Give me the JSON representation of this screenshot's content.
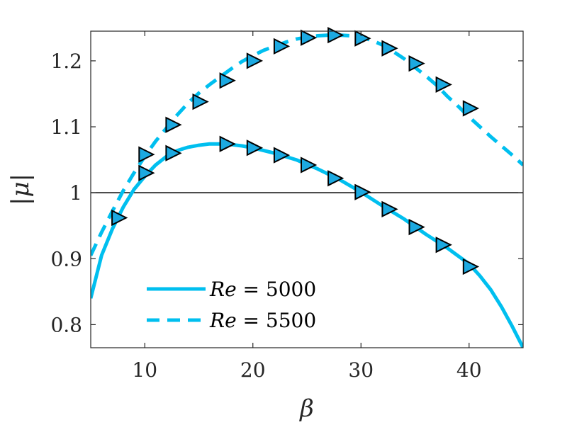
{
  "chart_data": {
    "type": "line",
    "xlabel": "β",
    "ylabel": "|μ|",
    "xlim": [
      5,
      45
    ],
    "ylim": [
      0.765,
      1.245
    ],
    "xticks": [
      10,
      20,
      30,
      40
    ],
    "yticks": [
      0.8,
      0.9,
      1,
      1.1,
      1.2
    ],
    "xtick_labels": [
      "10",
      "20",
      "30",
      "40"
    ],
    "ytick_labels": [
      "0.8",
      "0.9",
      "1",
      "1.1",
      "1.2"
    ],
    "reference_line": {
      "y": 1
    },
    "grid": false,
    "legend_position": "bottom-left",
    "line_color": "#00BFEF",
    "marker_color": "#1CA9E1",
    "series": [
      {
        "name": "Re = 5000",
        "name_parts": {
          "var": "Re",
          "rest": " = 5000"
        },
        "style": "solid",
        "curve": {
          "x": [
            5,
            6,
            7,
            8,
            9,
            10,
            11,
            12,
            13,
            14,
            15,
            16,
            17,
            18,
            19,
            20,
            22,
            24,
            26,
            28,
            30,
            32,
            34,
            36,
            38,
            40,
            41,
            42,
            43,
            44,
            45
          ],
          "y": [
            0.84,
            0.905,
            0.945,
            0.978,
            1.005,
            1.025,
            1.042,
            1.055,
            1.064,
            1.069,
            1.072,
            1.074,
            1.074,
            1.073,
            1.071,
            1.068,
            1.06,
            1.05,
            1.036,
            1.02,
            1.001,
            0.98,
            0.96,
            0.937,
            0.916,
            0.892,
            0.874,
            0.853,
            0.827,
            0.797,
            0.765
          ]
        },
        "markers": {
          "x": [
            7.5,
            10,
            12.5,
            17.5,
            20,
            22.5,
            25,
            27.5,
            30,
            32.5,
            35,
            37.5,
            40
          ],
          "y": [
            0.962,
            1.03,
            1.06,
            1.074,
            1.068,
            1.057,
            1.042,
            1.022,
            1.001,
            0.975,
            0.948,
            0.921,
            0.888
          ]
        }
      },
      {
        "name": "Re = 5500",
        "name_parts": {
          "var": "Re",
          "rest": " = 5500"
        },
        "style": "dashed",
        "curve": {
          "x": [
            5,
            6,
            7,
            8,
            9,
            10,
            11,
            12,
            13,
            14,
            15,
            16,
            17,
            18,
            19,
            20,
            21,
            22,
            23,
            24,
            25,
            26,
            27,
            28,
            29,
            30,
            31,
            32,
            33,
            34,
            35,
            36,
            37,
            38,
            39,
            40,
            41,
            42,
            43,
            44,
            45
          ],
          "y": [
            0.905,
            0.94,
            0.972,
            1.003,
            1.03,
            1.055,
            1.078,
            1.098,
            1.118,
            1.136,
            1.151,
            1.164,
            1.176,
            1.188,
            1.199,
            1.208,
            1.216,
            1.222,
            1.228,
            1.233,
            1.236,
            1.238,
            1.239,
            1.239,
            1.238,
            1.236,
            1.231,
            1.224,
            1.214,
            1.203,
            1.19,
            1.177,
            1.163,
            1.146,
            1.131,
            1.115,
            1.1,
            1.085,
            1.071,
            1.057,
            1.042
          ]
        },
        "markers": {
          "x": [
            10,
            12.5,
            15,
            17.5,
            20,
            22.5,
            25,
            27.5,
            30,
            32.5,
            35,
            37.5,
            40
          ],
          "y": [
            1.058,
            1.103,
            1.138,
            1.17,
            1.2,
            1.222,
            1.235,
            1.239,
            1.234,
            1.219,
            1.196,
            1.164,
            1.128
          ]
        }
      }
    ]
  }
}
